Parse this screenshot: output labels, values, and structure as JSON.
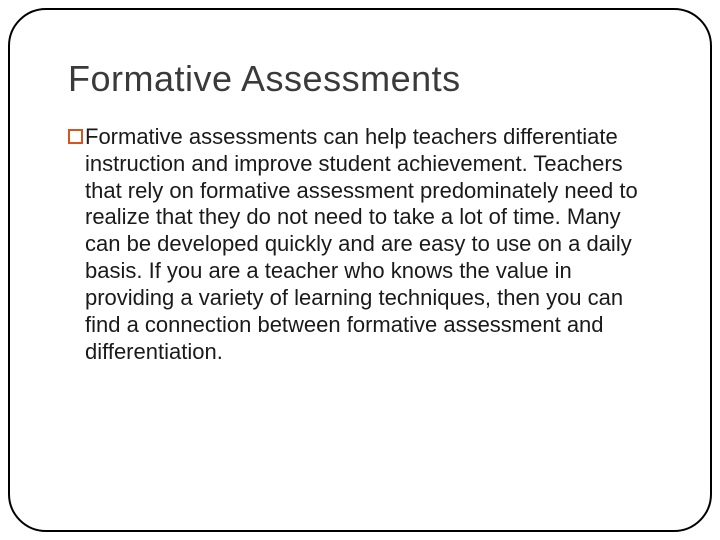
{
  "slide": {
    "title": "Formative Assessments",
    "body_text": "Formative assessments can help teachers differentiate instruction and improve student achievement. Teachers that rely on formative assessment predominately need to realize that they do not need to take a lot of time. Many can be developed quickly and are easy to use on a daily basis. If you are a teacher who knows the value in providing a variety of learning techniques, then you can find a connection between formative assessment and differentiation."
  },
  "style": {
    "frame_border_color": "#000000",
    "frame_border_width": 2,
    "frame_border_radius": 38,
    "background_color": "#ffffff",
    "title_color": "#3a3a3a",
    "title_fontsize": 36,
    "title_fontweight": 400,
    "body_color": "#1a1a1a",
    "body_fontsize": 22,
    "body_lineheight": 1.22,
    "bullet_border_color": "#d9531e",
    "bullet_size": 15,
    "bullet_border_width": 2,
    "font_family": "Arial"
  }
}
